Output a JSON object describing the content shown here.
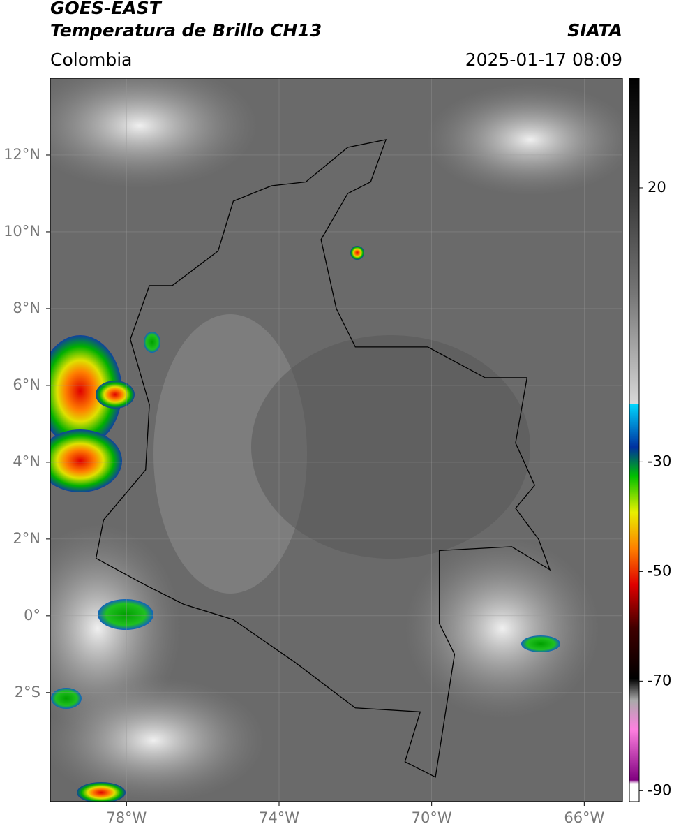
{
  "header": {
    "title": "GOES-EAST",
    "subtitle": "Temperatura de Brillo CH13",
    "source": "SIATA",
    "region": "Colombia",
    "datetime": "2025-01-17 08:09"
  },
  "map": {
    "lon_range": [
      -80,
      -65
    ],
    "lat_range": [
      -4.84,
      14
    ],
    "lat_ticks": [
      {
        "value": 12,
        "label": "12°N"
      },
      {
        "value": 10,
        "label": "10°N"
      },
      {
        "value": 8,
        "label": "8°N"
      },
      {
        "value": 6,
        "label": "6°N"
      },
      {
        "value": 4,
        "label": "4°N"
      },
      {
        "value": 2,
        "label": "2°N"
      },
      {
        "value": 0,
        "label": "0°"
      },
      {
        "value": -2,
        "label": "2°S"
      }
    ],
    "lon_ticks": [
      {
        "value": -78,
        "label": "78°W"
      },
      {
        "value": -74,
        "label": "74°W"
      },
      {
        "value": -70,
        "label": "70°W"
      },
      {
        "value": -66,
        "label": "66°W"
      }
    ]
  },
  "colorbar": {
    "range": [
      40,
      -92
    ],
    "ticks": [
      20,
      -30,
      -50,
      -70,
      -90
    ]
  }
}
